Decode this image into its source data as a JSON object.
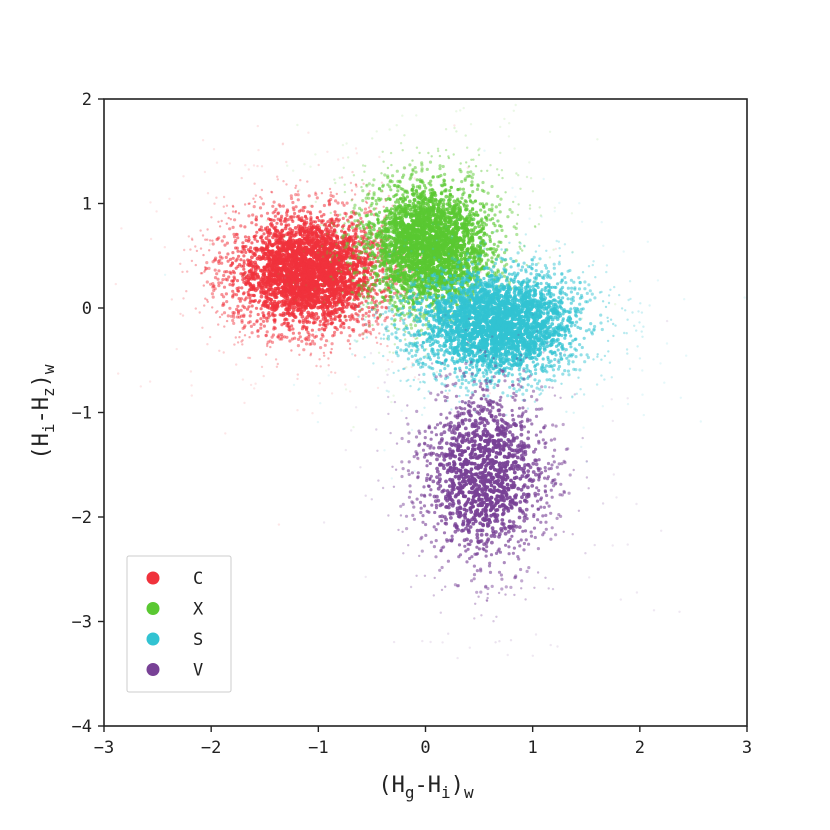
{
  "chart_data": {
    "type": "scatter",
    "title": "",
    "xlabel_parts": [
      "(H",
      "g",
      "-H",
      "i",
      ")",
      "w"
    ],
    "ylabel_parts": [
      "(H",
      "i",
      "-H",
      "z",
      ")",
      "w"
    ],
    "xlim": [
      -3,
      3
    ],
    "ylim": [
      -4,
      2
    ],
    "x_ticks": [
      -3,
      -2,
      -1,
      0,
      1,
      2,
      3
    ],
    "x_tick_labels": [
      "−3",
      "−2",
      "−1",
      "0",
      "1",
      "2",
      "3"
    ],
    "y_ticks": [
      -4,
      -3,
      -2,
      -1,
      0,
      1,
      2
    ],
    "y_tick_labels": [
      "−4",
      "−3",
      "−2",
      "−1",
      "0",
      "1",
      "2"
    ],
    "grid": false,
    "legend_position": "lower-left",
    "series": [
      {
        "name": "C",
        "color": "#f0323c",
        "center": [
          -1.1,
          0.35
        ],
        "spread": [
          0.38,
          0.3
        ],
        "n": 3200
      },
      {
        "name": "X",
        "color": "#5ac832",
        "center": [
          0.05,
          0.6
        ],
        "spread": [
          0.33,
          0.33
        ],
        "n": 2800
      },
      {
        "name": "S",
        "color": "#32c3d2",
        "center": [
          0.65,
          -0.15
        ],
        "spread": [
          0.42,
          0.28
        ],
        "n": 2800
      },
      {
        "name": "V",
        "color": "#784196",
        "center": [
          0.55,
          -1.6
        ],
        "spread": [
          0.33,
          0.45
        ],
        "n": 1500
      }
    ]
  }
}
